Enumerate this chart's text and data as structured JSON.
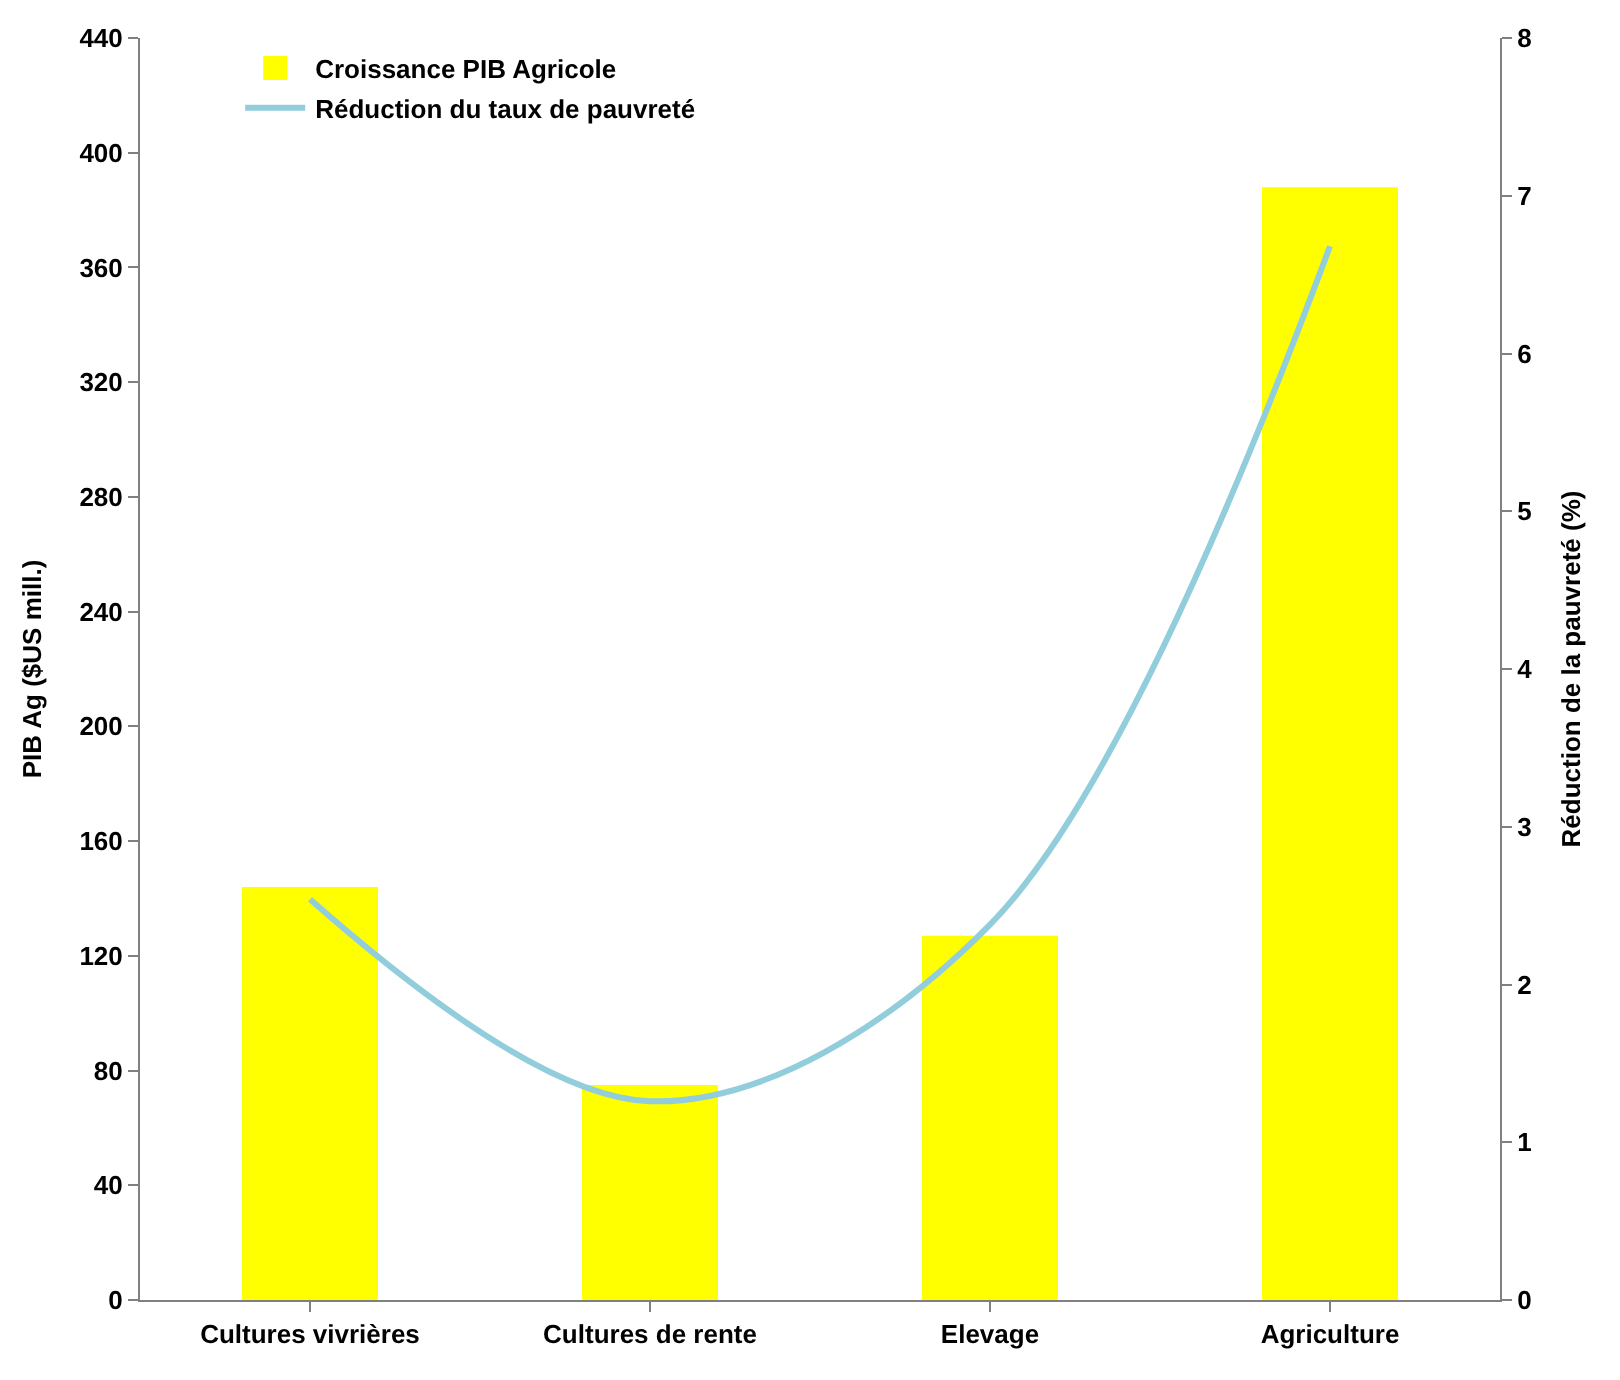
{
  "chart_data": {
    "type": "bar",
    "categories": [
      "Cultures vivrières",
      "Cultures de rente",
      "Elevage",
      "Agriculture"
    ],
    "series": [
      {
        "name": "Croissance PIB Agricole",
        "color": "#ffff00",
        "values": [
          144,
          75,
          127,
          388
        ]
      },
      {
        "name": "Réduction du taux de pauvreté",
        "type": "line",
        "axis": "y2",
        "color": "#92cddc",
        "values": [
          2.54,
          1.26,
          2.38,
          6.68
        ]
      }
    ],
    "ylabel": "PIB Ag ($US mill.)",
    "y2label": "Réduction de la pauvreté (%)",
    "ylim": [
      0,
      440
    ],
    "yticks": [
      0,
      40,
      80,
      120,
      160,
      200,
      240,
      280,
      320,
      360,
      400,
      440
    ],
    "y2lim": [
      0,
      8
    ],
    "y2ticks": [
      0,
      1,
      2,
      3,
      4,
      5,
      6,
      7,
      8
    ],
    "legend": "top left",
    "marker": "none",
    "line_style": "solid"
  }
}
